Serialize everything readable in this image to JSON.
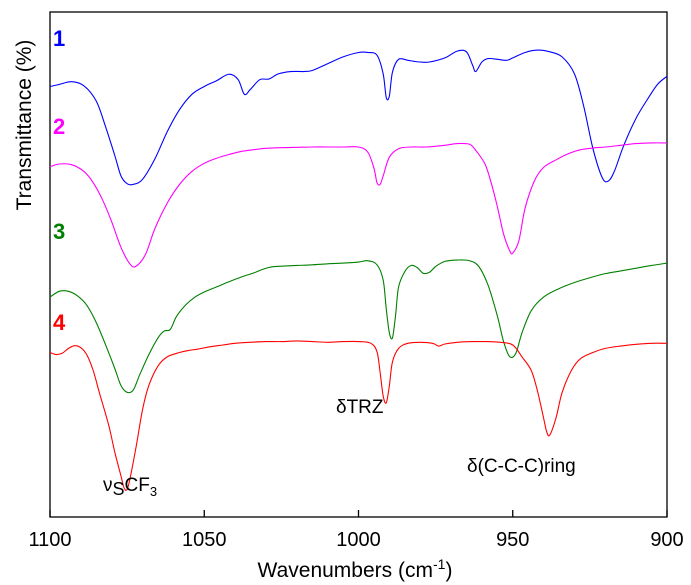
{
  "chart_data": {
    "type": "line",
    "title": "",
    "xlabel": "Wavenumbers (cm",
    "xlabel_sup": "-1",
    "xlabel_end": ")",
    "ylabel": "Transmittance (%)",
    "xlim": [
      1100,
      900
    ],
    "x_reversed": true,
    "xticks": [
      1100,
      1050,
      1000,
      950,
      900
    ],
    "xtick_labels": [
      "1100",
      "1050",
      "1000",
      "950",
      "900"
    ],
    "y_ticks_shown": false,
    "grid": false,
    "series": [
      {
        "name": "1",
        "color": "#0000ff",
        "baseline": 0.0,
        "points": [
          [
            1100,
            0.72
          ],
          [
            1097,
            0.66
          ],
          [
            1093,
            0.58
          ],
          [
            1089,
            0.7
          ],
          [
            1085,
            1.15
          ],
          [
            1082,
            1.9
          ],
          [
            1079,
            2.75
          ],
          [
            1077,
            3.35
          ],
          [
            1075,
            3.58
          ],
          [
            1073,
            3.6
          ],
          [
            1070,
            3.45
          ],
          [
            1066,
            2.85
          ],
          [
            1062,
            2.05
          ],
          [
            1058,
            1.4
          ],
          [
            1054,
            0.95
          ],
          [
            1050,
            0.72
          ],
          [
            1046,
            0.55
          ],
          [
            1042,
            0.36
          ],
          [
            1039,
            0.52
          ],
          [
            1037,
            0.95
          ],
          [
            1035,
            0.8
          ],
          [
            1032,
            0.52
          ],
          [
            1029,
            0.5
          ],
          [
            1026,
            0.35
          ],
          [
            1022,
            0.28
          ],
          [
            1018,
            0.28
          ],
          [
            1015,
            0.25
          ],
          [
            1010,
            0.05
          ],
          [
            1005,
            -0.15
          ],
          [
            1000,
            -0.28
          ],
          [
            997,
            -0.28
          ],
          [
            994,
            -0.2
          ],
          [
            992,
            0.35
          ],
          [
            991,
            1.05
          ],
          [
            990,
            1.0
          ],
          [
            989,
            0.3
          ],
          [
            987,
            -0.08
          ],
          [
            984,
            -0.05
          ],
          [
            982,
            -0.02
          ],
          [
            980,
            0.0
          ],
          [
            977,
            0.0
          ],
          [
            972,
            -0.12
          ],
          [
            968,
            -0.32
          ],
          [
            965,
            -0.3
          ],
          [
            963,
            0.1
          ],
          [
            962,
            0.28
          ],
          [
            960,
            0.0
          ],
          [
            958,
            -0.1
          ],
          [
            955,
            -0.08
          ],
          [
            952,
            -0.05
          ],
          [
            950,
            -0.12
          ],
          [
            946,
            -0.28
          ],
          [
            942,
            -0.35
          ],
          [
            938,
            -0.3
          ],
          [
            934,
            -0.15
          ],
          [
            930,
            0.35
          ],
          [
            927,
            1.3
          ],
          [
            924,
            2.55
          ],
          [
            921,
            3.4
          ],
          [
            919,
            3.5
          ],
          [
            917,
            3.2
          ],
          [
            914,
            2.45
          ],
          [
            910,
            1.65
          ],
          [
            906,
            1.05
          ],
          [
            903,
            0.65
          ],
          [
            900,
            0.42
          ]
        ]
      },
      {
        "name": "2",
        "color": "#ff00ff",
        "baseline": 0.0,
        "points": [
          [
            1100,
            0.58
          ],
          [
            1097,
            0.5
          ],
          [
            1093,
            0.52
          ],
          [
            1089,
            0.72
          ],
          [
            1086,
            1.05
          ],
          [
            1083,
            1.55
          ],
          [
            1080,
            2.2
          ],
          [
            1077,
            2.95
          ],
          [
            1074,
            3.45
          ],
          [
            1072,
            3.5
          ],
          [
            1069,
            3.15
          ],
          [
            1066,
            2.4
          ],
          [
            1062,
            1.65
          ],
          [
            1058,
            1.1
          ],
          [
            1054,
            0.72
          ],
          [
            1050,
            0.48
          ],
          [
            1046,
            0.33
          ],
          [
            1042,
            0.22
          ],
          [
            1038,
            0.13
          ],
          [
            1034,
            0.08
          ],
          [
            1030,
            0.04
          ],
          [
            1025,
            0.02
          ],
          [
            1020,
            0.01
          ],
          [
            1015,
            0.0
          ],
          [
            1010,
            0.0
          ],
          [
            1005,
            0.0
          ],
          [
            1000,
            0.0
          ],
          [
            997,
            0.15
          ],
          [
            995,
            0.62
          ],
          [
            994,
            1.05
          ],
          [
            993,
            1.1
          ],
          [
            992,
            0.85
          ],
          [
            990,
            0.3
          ],
          [
            987,
            0.05
          ],
          [
            983,
            0.0
          ],
          [
            978,
            0.0
          ],
          [
            972,
            -0.05
          ],
          [
            968,
            -0.1
          ],
          [
            964,
            -0.08
          ],
          [
            962,
            0.1
          ],
          [
            959,
            0.5
          ],
          [
            957,
            1.05
          ],
          [
            955,
            1.75
          ],
          [
            953,
            2.55
          ],
          [
            951,
            3.05
          ],
          [
            950,
            3.12
          ],
          [
            948,
            2.75
          ],
          [
            946,
            1.8
          ],
          [
            943,
            1.0
          ],
          [
            940,
            0.6
          ],
          [
            936,
            0.38
          ],
          [
            932,
            0.2
          ],
          [
            928,
            0.08
          ],
          [
            924,
            0.03
          ],
          [
            920,
            0.0
          ],
          [
            915,
            -0.05
          ],
          [
            910,
            -0.1
          ],
          [
            905,
            -0.12
          ],
          [
            900,
            -0.12
          ]
        ]
      },
      {
        "name": "3",
        "color": "#008000",
        "baseline": 0.0,
        "points": [
          [
            1100,
            1.15
          ],
          [
            1097,
            0.98
          ],
          [
            1094,
            0.98
          ],
          [
            1091,
            1.12
          ],
          [
            1088,
            1.4
          ],
          [
            1085,
            1.9
          ],
          [
            1082,
            2.55
          ],
          [
            1079,
            3.25
          ],
          [
            1077,
            3.75
          ],
          [
            1075,
            3.95
          ],
          [
            1073,
            3.88
          ],
          [
            1071,
            3.45
          ],
          [
            1068,
            2.85
          ],
          [
            1065,
            2.35
          ],
          [
            1063,
            2.15
          ],
          [
            1061,
            2.1
          ],
          [
            1059,
            1.72
          ],
          [
            1056,
            1.38
          ],
          [
            1053,
            1.15
          ],
          [
            1050,
            1.0
          ],
          [
            1046,
            0.85
          ],
          [
            1042,
            0.7
          ],
          [
            1038,
            0.56
          ],
          [
            1034,
            0.44
          ],
          [
            1031,
            0.33
          ],
          [
            1028,
            0.26
          ],
          [
            1025,
            0.24
          ],
          [
            1020,
            0.22
          ],
          [
            1015,
            0.2
          ],
          [
            1010,
            0.17
          ],
          [
            1005,
            0.15
          ],
          [
            1000,
            0.12
          ],
          [
            997,
            0.08
          ],
          [
            994,
            0.2
          ],
          [
            992,
            0.65
          ],
          [
            991,
            1.5
          ],
          [
            990,
            2.2
          ],
          [
            989,
            2.35
          ],
          [
            988,
            1.7
          ],
          [
            987,
            0.85
          ],
          [
            985,
            0.4
          ],
          [
            983,
            0.22
          ],
          [
            981,
            0.28
          ],
          [
            979,
            0.45
          ],
          [
            977,
            0.42
          ],
          [
            975,
            0.25
          ],
          [
            972,
            0.1
          ],
          [
            968,
            0.06
          ],
          [
            964,
            0.08
          ],
          [
            961,
            0.25
          ],
          [
            958,
            0.8
          ],
          [
            955,
            1.7
          ],
          [
            953,
            2.45
          ],
          [
            951,
            2.9
          ],
          [
            949,
            2.8
          ],
          [
            947,
            2.2
          ],
          [
            944,
            1.55
          ],
          [
            940,
            1.15
          ],
          [
            935,
            0.9
          ],
          [
            930,
            0.72
          ],
          [
            925,
            0.58
          ],
          [
            920,
            0.46
          ],
          [
            915,
            0.38
          ],
          [
            910,
            0.3
          ],
          [
            905,
            0.22
          ],
          [
            900,
            0.15
          ]
        ]
      },
      {
        "name": "4",
        "color": "#ff0000",
        "baseline": 0.0,
        "points": [
          [
            1100,
            0.22
          ],
          [
            1098,
            0.28
          ],
          [
            1096,
            0.24
          ],
          [
            1094,
            0.1
          ],
          [
            1092,
            0.02
          ],
          [
            1090,
            0.08
          ],
          [
            1088,
            0.3
          ],
          [
            1086,
            0.75
          ],
          [
            1084,
            1.4
          ],
          [
            1081,
            2.35
          ],
          [
            1079,
            3.15
          ],
          [
            1077,
            3.85
          ],
          [
            1076,
            4.2
          ],
          [
            1075,
            4.25
          ],
          [
            1074,
            3.9
          ],
          [
            1072,
            2.95
          ],
          [
            1070,
            1.9
          ],
          [
            1068,
            1.2
          ],
          [
            1065,
            0.62
          ],
          [
            1062,
            0.35
          ],
          [
            1058,
            0.22
          ],
          [
            1055,
            0.16
          ],
          [
            1052,
            0.12
          ],
          [
            1048,
            0.05
          ],
          [
            1044,
            0.0
          ],
          [
            1040,
            -0.05
          ],
          [
            1035,
            -0.08
          ],
          [
            1030,
            -0.1
          ],
          [
            1025,
            -0.1
          ],
          [
            1020,
            -0.12
          ],
          [
            1015,
            -0.1
          ],
          [
            1010,
            -0.08
          ],
          [
            1005,
            -0.1
          ],
          [
            1000,
            -0.1
          ],
          [
            996,
            -0.05
          ],
          [
            994,
            0.2
          ],
          [
            993,
            0.8
          ],
          [
            992,
            1.5
          ],
          [
            991,
            1.7
          ],
          [
            990,
            1.2
          ],
          [
            989,
            0.5
          ],
          [
            987,
            0.1
          ],
          [
            984,
            -0.05
          ],
          [
            980,
            -0.08
          ],
          [
            976,
            -0.05
          ],
          [
            974,
            0.03
          ],
          [
            972,
            -0.03
          ],
          [
            968,
            -0.08
          ],
          [
            963,
            -0.1
          ],
          [
            958,
            -0.1
          ],
          [
            954,
            -0.08
          ],
          [
            950,
            0.0
          ],
          [
            947,
            0.35
          ],
          [
            944,
            0.75
          ],
          [
            942,
            1.35
          ],
          [
            940,
            2.15
          ],
          [
            939,
            2.55
          ],
          [
            938,
            2.65
          ],
          [
            936,
            2.15
          ],
          [
            934,
            1.4
          ],
          [
            931,
            0.75
          ],
          [
            928,
            0.4
          ],
          [
            924,
            0.22
          ],
          [
            920,
            0.1
          ],
          [
            915,
            0.03
          ],
          [
            910,
            -0.02
          ],
          [
            905,
            -0.05
          ],
          [
            900,
            -0.05
          ]
        ]
      }
    ],
    "annotations": [
      {
        "id": "vs-cf3",
        "parts": [
          "ν",
          "S",
          "CF",
          "3"
        ]
      },
      {
        "id": "delta-trz",
        "text": "δTRZ"
      },
      {
        "id": "delta-ring",
        "text": "δ(C-C-C)ring"
      }
    ],
    "series_labels": [
      "1",
      "2",
      "3",
      "4"
    ]
  }
}
